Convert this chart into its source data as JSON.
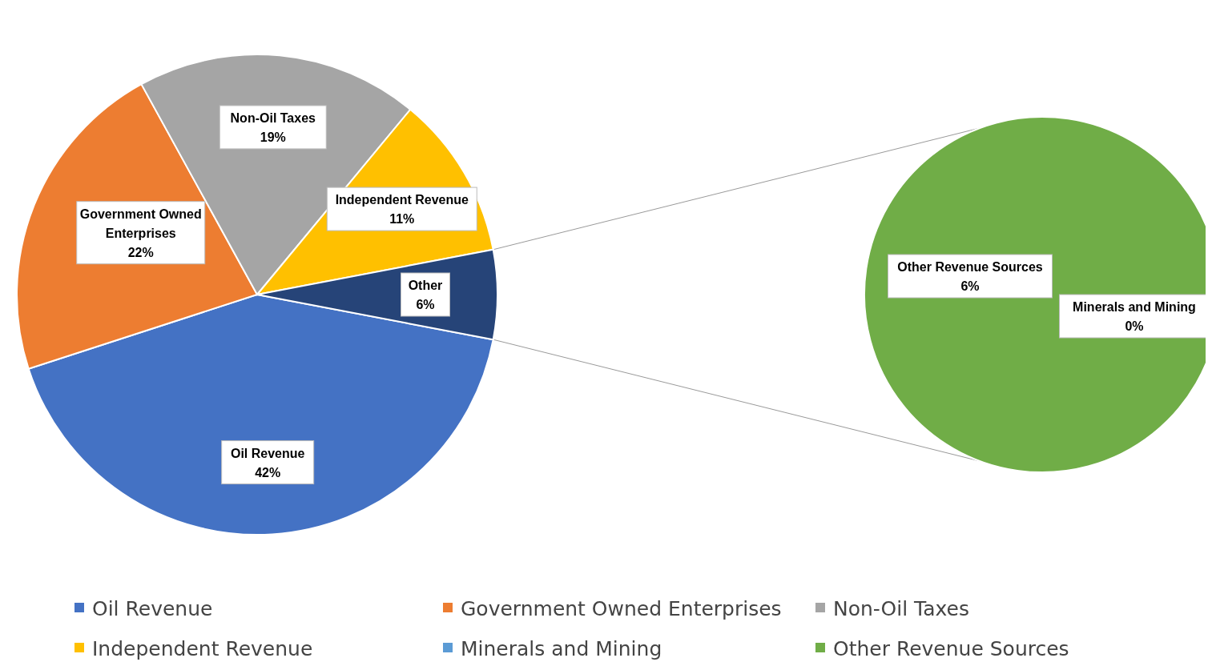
{
  "chart_data": [
    {
      "type": "pie",
      "categories": [
        "Oil Revenue",
        "Government Owned Enterprises",
        "Non-Oil Taxes",
        "Independent Revenue",
        "Other"
      ],
      "values": [
        42,
        22,
        19,
        11,
        6
      ],
      "value_labels": [
        "42%",
        "22%",
        "19%",
        "11%",
        "6%"
      ],
      "colors": [
        "#4472c4",
        "#ed7d31",
        "#a5a5a5",
        "#ffc000",
        "#264478"
      ],
      "data_labels": true,
      "legend": "bottom"
    },
    {
      "type": "pie",
      "categories": [
        "Minerals and Mining",
        "Other Revenue Sources"
      ],
      "values": [
        0,
        6
      ],
      "value_labels": [
        "0%",
        "6%"
      ],
      "colors": [
        "#5b9bd5",
        "#70ad47"
      ],
      "data_labels": true,
      "legend": "bottom"
    }
  ]
}
